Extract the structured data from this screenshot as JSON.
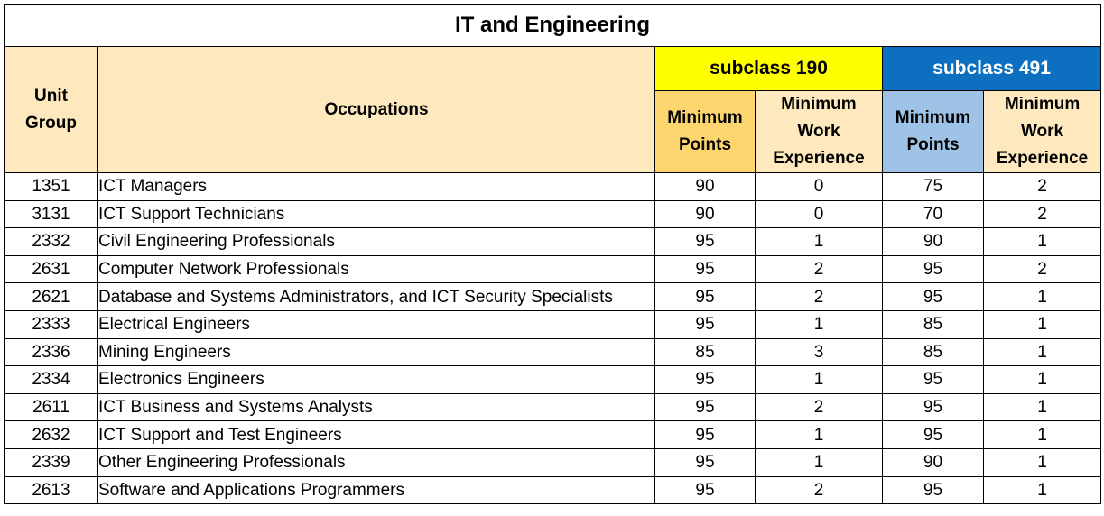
{
  "table": {
    "title": "IT and Engineering",
    "headers": {
      "unit_group_line1": "Unit",
      "unit_group_line2": "Group",
      "occupations": "Occupations",
      "subclass_190": "subclass 190",
      "subclass_491": "subclass 491",
      "min_points_line1": "Minimum",
      "min_points_line2": "Points",
      "min_work_line1": "Minimum",
      "min_work_line2": "Work",
      "min_work_line3": "Experience"
    },
    "rows": [
      {
        "code": "1351",
        "occupation": "ICT Managers",
        "p190": "90",
        "w190": "0",
        "p491": "75",
        "w491": "2"
      },
      {
        "code": "3131",
        "occupation": "ICT Support Technicians",
        "p190": "90",
        "w190": "0",
        "p491": "70",
        "w491": "2"
      },
      {
        "code": "2332",
        "occupation": "Civil Engineering Professionals",
        "p190": "95",
        "w190": "1",
        "p491": "90",
        "w491": "1"
      },
      {
        "code": "2631",
        "occupation": "Computer Network Professionals",
        "p190": "95",
        "w190": "2",
        "p491": "95",
        "w491": "2"
      },
      {
        "code": "2621",
        "occupation": "Database and Systems Administrators, and ICT Security Specialists",
        "p190": "95",
        "w190": "2",
        "p491": "95",
        "w491": "1"
      },
      {
        "code": "2333",
        "occupation": "Electrical Engineers",
        "p190": "95",
        "w190": "1",
        "p491": "85",
        "w491": "1"
      },
      {
        "code": "2336",
        "occupation": "Mining Engineers",
        "p190": "85",
        "w190": "3",
        "p491": "85",
        "w491": "1"
      },
      {
        "code": "2334",
        "occupation": "Electronics Engineers",
        "p190": "95",
        "w190": "1",
        "p491": "95",
        "w491": "1"
      },
      {
        "code": "2611",
        "occupation": "ICT Business and Systems Analysts",
        "p190": "95",
        "w190": "2",
        "p491": "95",
        "w491": "1"
      },
      {
        "code": "2632",
        "occupation": "ICT Support and Test Engineers",
        "p190": "95",
        "w190": "1",
        "p491": "95",
        "w491": "1"
      },
      {
        "code": "2339",
        "occupation": "Other Engineering Professionals",
        "p190": "95",
        "w190": "1",
        "p491": "90",
        "w491": "1"
      },
      {
        "code": "2613",
        "occupation": "Software and Applications Programmers",
        "p190": "95",
        "w190": "2",
        "p491": "95",
        "w491": "1"
      }
    ]
  },
  "colors": {
    "header_bg": "#fde9bd",
    "subclass_190_bg": "#ffff00",
    "subclass_491_bg": "#0d6fc0",
    "min_points_190_bg": "#fcd56f",
    "min_points_491_bg": "#9fc3e7"
  }
}
